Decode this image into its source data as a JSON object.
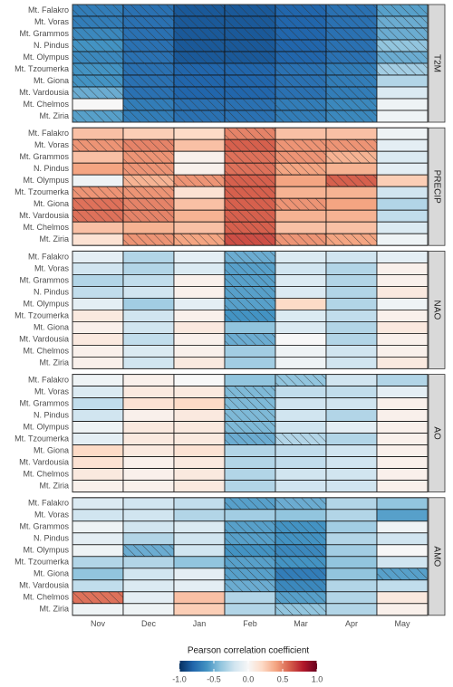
{
  "chart_data": {
    "type": "heatmap",
    "x": [
      "Nov",
      "Dec",
      "Jan",
      "Feb",
      "Mar",
      "Apr",
      "May"
    ],
    "facets": [
      {
        "label": "T2M",
        "y": [
          "Mt. Falakro",
          "Mt. Voras",
          "Mt. Grammos",
          "N. Pindus",
          "Mt. Olympus",
          "Mt. Tzoumerka",
          "Mt. Giona",
          "Mt. Vardousia",
          "Mt. Chelmos",
          "Mt. Ziria"
        ],
        "values": [
          [
            -0.7,
            -0.75,
            -0.85,
            -0.85,
            -0.8,
            -0.75,
            -0.55
          ],
          [
            -0.7,
            -0.75,
            -0.85,
            -0.85,
            -0.8,
            -0.75,
            -0.5
          ],
          [
            -0.65,
            -0.75,
            -0.85,
            -0.85,
            -0.8,
            -0.75,
            -0.5
          ],
          [
            -0.6,
            -0.75,
            -0.85,
            -0.85,
            -0.8,
            -0.75,
            -0.4
          ],
          [
            -0.65,
            -0.75,
            -0.85,
            -0.85,
            -0.8,
            -0.75,
            -0.5
          ],
          [
            -0.6,
            -0.75,
            -0.8,
            -0.8,
            -0.75,
            -0.7,
            -0.35
          ],
          [
            -0.6,
            -0.75,
            -0.8,
            -0.8,
            -0.75,
            -0.7,
            -0.3
          ],
          [
            -0.5,
            -0.75,
            -0.8,
            -0.8,
            -0.75,
            -0.7,
            -0.15
          ],
          [
            0,
            -0.7,
            -0.75,
            -0.75,
            -0.7,
            -0.65,
            -0.05
          ],
          [
            -0.55,
            -0.7,
            -0.75,
            -0.75,
            -0.7,
            -0.65,
            -0.05
          ]
        ],
        "hatched": [
          [
            true,
            true,
            true,
            true,
            true,
            true,
            true
          ],
          [
            true,
            true,
            true,
            true,
            true,
            true,
            true
          ],
          [
            true,
            true,
            true,
            true,
            true,
            true,
            true
          ],
          [
            true,
            true,
            true,
            true,
            true,
            true,
            true
          ],
          [
            true,
            true,
            true,
            true,
            true,
            true,
            true
          ],
          [
            true,
            true,
            true,
            true,
            true,
            true,
            true
          ],
          [
            true,
            true,
            true,
            true,
            true,
            true,
            false
          ],
          [
            true,
            true,
            true,
            true,
            true,
            true,
            false
          ],
          [
            false,
            true,
            true,
            true,
            true,
            true,
            false
          ],
          [
            true,
            true,
            true,
            true,
            true,
            true,
            false
          ]
        ]
      },
      {
        "label": "PRECIP",
        "y": [
          "Mt. Falakro",
          "Mt. Voras",
          "Mt. Grammos",
          "N. Pindus",
          "Mt. Olympus",
          "Mt. Tzoumerka",
          "Mt. Giona",
          "Mt. Vardousia",
          "Mt. Chelmos",
          "Mt. Ziria"
        ],
        "values": [
          [
            0.3,
            0.25,
            0.2,
            0.5,
            0.3,
            0.3,
            -0.05
          ],
          [
            0.45,
            0.5,
            0.3,
            0.6,
            0.45,
            0.45,
            -0.1
          ],
          [
            0.3,
            0.45,
            0.05,
            0.55,
            0.45,
            0.35,
            -0.15
          ],
          [
            0.4,
            0.45,
            0.05,
            0.55,
            0.4,
            0.35,
            -0.1
          ],
          [
            -0.05,
            0.35,
            0.45,
            0.6,
            0.4,
            0.6,
            0.25
          ],
          [
            0.45,
            0.45,
            0.15,
            0.6,
            0.35,
            0.35,
            -0.2
          ],
          [
            0.55,
            0.5,
            0.3,
            0.6,
            0.45,
            0.4,
            -0.3
          ],
          [
            0.55,
            0.5,
            0.35,
            0.6,
            0.35,
            0.35,
            -0.25
          ],
          [
            0.3,
            0.35,
            0.3,
            0.6,
            0.3,
            0.3,
            -0.15
          ],
          [
            0.15,
            0.45,
            0.4,
            0.65,
            0.45,
            0.4,
            -0.05
          ]
        ],
        "hatched": [
          [
            false,
            false,
            false,
            true,
            false,
            false,
            false
          ],
          [
            true,
            true,
            false,
            true,
            true,
            true,
            false
          ],
          [
            false,
            true,
            false,
            true,
            true,
            true,
            false
          ],
          [
            false,
            true,
            false,
            true,
            true,
            false,
            false
          ],
          [
            false,
            true,
            true,
            true,
            false,
            true,
            false
          ],
          [
            true,
            true,
            false,
            true,
            false,
            false,
            false
          ],
          [
            true,
            true,
            false,
            true,
            true,
            false,
            false
          ],
          [
            true,
            true,
            false,
            true,
            false,
            false,
            false
          ],
          [
            false,
            false,
            false,
            true,
            false,
            false,
            false
          ],
          [
            false,
            true,
            true,
            true,
            true,
            true,
            false
          ]
        ]
      },
      {
        "label": "NAO",
        "y": [
          "Mt. Falakro",
          "Mt. Voras",
          "Mt. Grammos",
          "N. Pindus",
          "Mt. Olympus",
          "Mt. Tzoumerka",
          "Mt. Giona",
          "Mt. Vardousia",
          "Mt. Chelmos",
          "Mt. Ziria"
        ],
        "values": [
          [
            -0.1,
            -0.3,
            -0.1,
            -0.5,
            -0.15,
            -0.2,
            -0.1
          ],
          [
            -0.2,
            -0.3,
            -0.15,
            -0.55,
            -0.2,
            -0.3,
            0.05
          ],
          [
            -0.3,
            -0.25,
            0.05,
            -0.55,
            -0.15,
            -0.3,
            0.05
          ],
          [
            -0.25,
            -0.2,
            0.05,
            -0.55,
            -0.15,
            -0.3,
            0.1
          ],
          [
            -0.1,
            -0.35,
            -0.1,
            -0.55,
            0.2,
            -0.3,
            -0.05
          ],
          [
            0.1,
            -0.2,
            0.05,
            -0.6,
            -0.15,
            -0.25,
            0.05
          ],
          [
            0.05,
            -0.2,
            0.1,
            -0.4,
            -0.15,
            -0.3,
            0.1
          ],
          [
            0.1,
            -0.25,
            0.05,
            -0.5,
            0,
            -0.3,
            0.05
          ],
          [
            0.05,
            -0.15,
            0.05,
            -0.35,
            -0.05,
            -0.2,
            0.05
          ],
          [
            0.05,
            -0.2,
            0.1,
            -0.35,
            -0.05,
            -0.2,
            0.1
          ]
        ],
        "hatched": [
          [
            false,
            false,
            false,
            true,
            false,
            false,
            false
          ],
          [
            false,
            false,
            false,
            true,
            false,
            false,
            false
          ],
          [
            false,
            false,
            false,
            true,
            false,
            false,
            false
          ],
          [
            false,
            false,
            false,
            true,
            false,
            false,
            false
          ],
          [
            false,
            false,
            false,
            true,
            false,
            false,
            false
          ],
          [
            false,
            false,
            false,
            true,
            false,
            false,
            false
          ],
          [
            false,
            false,
            false,
            false,
            false,
            false,
            false
          ],
          [
            false,
            false,
            false,
            true,
            false,
            false,
            false
          ],
          [
            false,
            false,
            false,
            false,
            false,
            false,
            false
          ],
          [
            false,
            false,
            false,
            false,
            false,
            false,
            false
          ]
        ]
      },
      {
        "label": "AO",
        "y": [
          "Mt. Falakro",
          "Mt. Voras",
          "Mt. Grammos",
          "N. Pindus",
          "Mt. Olympus",
          "Mt. Tzoumerka",
          "Mt. Giona",
          "Mt. Vardousia",
          "Mt. Chelmos",
          "Mt. Ziria"
        ],
        "values": [
          [
            -0.05,
            0.05,
            0,
            -0.4,
            -0.4,
            -0.2,
            -0.3
          ],
          [
            -0.15,
            0.1,
            0.1,
            -0.45,
            -0.25,
            -0.25,
            -0.1
          ],
          [
            -0.25,
            0.15,
            0.2,
            -0.45,
            -0.2,
            -0.2,
            0.05
          ],
          [
            -0.2,
            0.05,
            0.1,
            -0.45,
            -0.2,
            -0.3,
            0.05
          ],
          [
            -0.05,
            0.1,
            0.1,
            -0.45,
            -0.2,
            -0.1,
            0.05
          ],
          [
            -0.1,
            0.1,
            0.1,
            -0.5,
            -0.3,
            -0.3,
            0.05
          ],
          [
            0.2,
            0.1,
            0.15,
            -0.3,
            -0.25,
            -0.2,
            0.05
          ],
          [
            0.15,
            0.05,
            0.1,
            -0.3,
            -0.25,
            -0.2,
            0.05
          ],
          [
            0.1,
            0.05,
            0.1,
            -0.3,
            -0.2,
            -0.2,
            0.05
          ],
          [
            0.05,
            0.05,
            0.1,
            -0.3,
            -0.2,
            -0.2,
            0.05
          ]
        ],
        "hatched": [
          [
            false,
            false,
            false,
            false,
            true,
            false,
            false
          ],
          [
            false,
            false,
            false,
            true,
            false,
            false,
            false
          ],
          [
            false,
            false,
            false,
            true,
            false,
            false,
            false
          ],
          [
            false,
            false,
            false,
            true,
            false,
            false,
            false
          ],
          [
            false,
            false,
            false,
            true,
            false,
            false,
            false
          ],
          [
            false,
            false,
            false,
            true,
            true,
            false,
            false
          ],
          [
            false,
            false,
            false,
            false,
            false,
            false,
            false
          ],
          [
            false,
            false,
            false,
            false,
            false,
            false,
            false
          ],
          [
            false,
            false,
            false,
            false,
            false,
            false,
            false
          ],
          [
            false,
            false,
            false,
            false,
            false,
            false,
            false
          ]
        ]
      },
      {
        "label": "AMO",
        "y": [
          "Mt. Falakro",
          "Mt. Voras",
          "Mt. Grammos",
          "N. Pindus",
          "Mt. Olympus",
          "Mt. Tzoumerka",
          "Mt. Giona",
          "Mt. Vardousia",
          "Mt. Chelmos",
          "Mt. Ziria"
        ],
        "values": [
          [
            -0.15,
            -0.2,
            -0.25,
            -0.55,
            -0.5,
            -0.3,
            -0.4
          ],
          [
            -0.2,
            -0.2,
            -0.3,
            -0.35,
            -0.4,
            -0.3,
            -0.55
          ],
          [
            -0.05,
            -0.2,
            -0.15,
            -0.55,
            -0.6,
            -0.35,
            -0.05
          ],
          [
            -0.1,
            -0.3,
            -0.2,
            -0.55,
            -0.6,
            -0.3,
            -0.2
          ],
          [
            -0.05,
            -0.5,
            -0.2,
            -0.6,
            -0.65,
            -0.35,
            0
          ],
          [
            -0.3,
            -0.3,
            -0.4,
            -0.55,
            -0.6,
            -0.4,
            -0.2
          ],
          [
            -0.4,
            -0.2,
            -0.1,
            -0.55,
            -0.7,
            -0.4,
            -0.55
          ],
          [
            -0.25,
            -0.15,
            -0.1,
            -0.5,
            -0.65,
            -0.3,
            -0.25
          ],
          [
            0.55,
            -0.1,
            0.3,
            -0.3,
            -0.55,
            -0.3,
            0.1
          ],
          [
            -0.05,
            -0.05,
            0.25,
            -0.3,
            -0.4,
            -0.3,
            0.05
          ]
        ],
        "hatched": [
          [
            false,
            false,
            false,
            true,
            true,
            false,
            false
          ],
          [
            false,
            false,
            false,
            false,
            false,
            false,
            false
          ],
          [
            false,
            false,
            false,
            true,
            true,
            false,
            false
          ],
          [
            false,
            false,
            false,
            true,
            true,
            false,
            false
          ],
          [
            false,
            true,
            false,
            true,
            true,
            false,
            false
          ],
          [
            false,
            false,
            false,
            true,
            true,
            false,
            false
          ],
          [
            false,
            false,
            false,
            true,
            true,
            false,
            true
          ],
          [
            false,
            false,
            false,
            true,
            true,
            false,
            false
          ],
          [
            true,
            false,
            false,
            false,
            true,
            false,
            false
          ],
          [
            false,
            false,
            false,
            false,
            true,
            false,
            false
          ]
        ]
      }
    ],
    "colorbar": {
      "title": "Pearson correlation coefficient",
      "lim": [
        -1,
        1
      ],
      "ticks": [
        {
          "value": -1,
          "label": "-1.0"
        },
        -0.5,
        {
          "value": 0,
          "label": "0.0"
        },
        0.5,
        {
          "value": 1,
          "label": "1.0"
        }
      ],
      "colors": [
        "#053061",
        "#2166ac",
        "#4393c3",
        "#92c5de",
        "#d1e5f0",
        "#f7f7f7",
        "#fddbc7",
        "#f4a582",
        "#d6604d",
        "#b2182b",
        "#67001f"
      ]
    }
  }
}
